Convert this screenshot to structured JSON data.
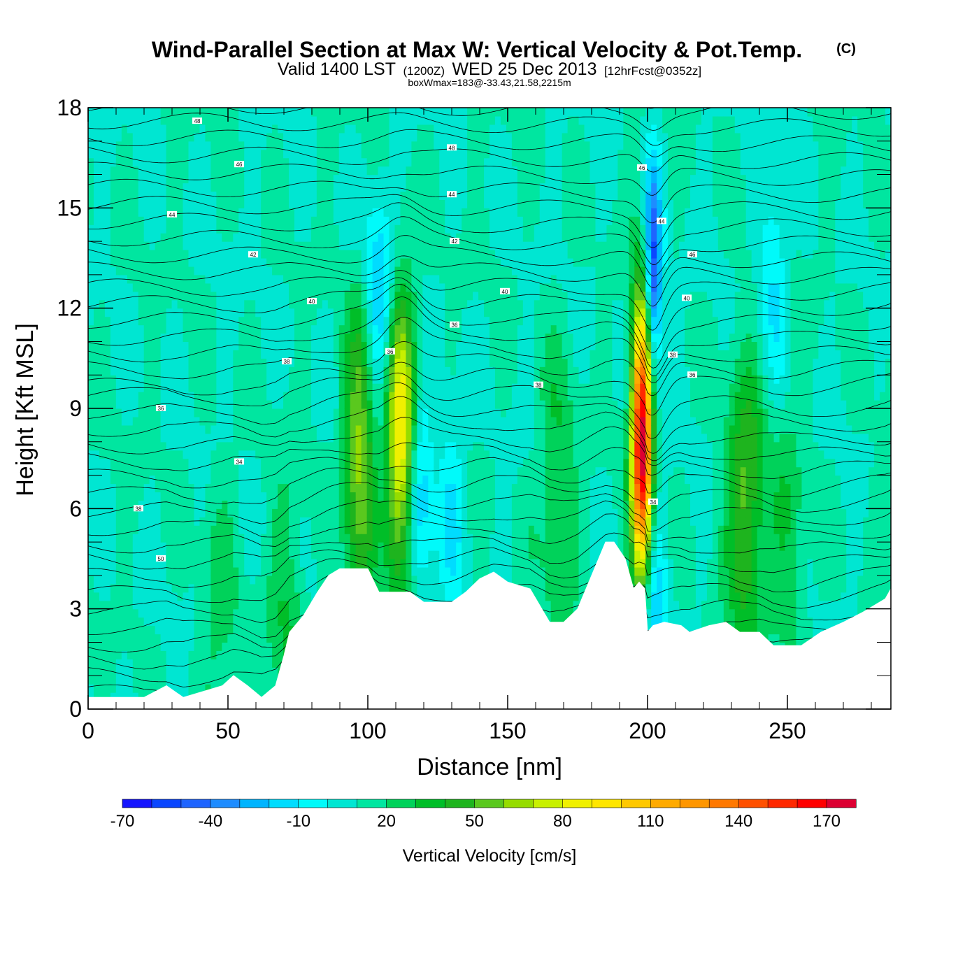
{
  "chart_data": {
    "type": "heatmap",
    "title": "Wind-Parallel Section at Max W: Vertical Velocity & Pot.Temp.",
    "title_mark": "(C)",
    "subtitle_parts": [
      "Valid 1400 LST",
      "(1200Z)",
      "WED 25 Dec 2013",
      "[12hrFcst@0352z]"
    ],
    "subtitle2": "boxWmax=183@-33.43,21.58,2215m",
    "xlabel": "Distance [nm]",
    "ylabel": "Height [Kft MSL]",
    "xlim": [
      0,
      287
    ],
    "ylim": [
      0,
      18
    ],
    "x_ticks": [
      0,
      50,
      100,
      150,
      200,
      250
    ],
    "x_tick_labels": [
      "0",
      "50",
      "100",
      "150",
      "200",
      "250"
    ],
    "y_ticks": [
      0,
      3,
      6,
      9,
      12,
      15,
      18
    ],
    "y_tick_labels": [
      "0",
      "3",
      "6",
      "9",
      "12",
      "15",
      "18"
    ],
    "background_value": 10,
    "updrafts": [
      {
        "x": 47,
        "z": 2.5,
        "w": 25
      },
      {
        "x": 71,
        "z": 2.5,
        "w": 30
      },
      {
        "x": 97,
        "z": 7.5,
        "w": 65
      },
      {
        "x": 112,
        "z": 8,
        "w": 95
      },
      {
        "x": 168,
        "z": 6.5,
        "w": 32
      },
      {
        "x": 198,
        "z": 8,
        "w": 183
      },
      {
        "x": 235,
        "z": 6,
        "w": 55
      },
      {
        "x": 250,
        "z": 5,
        "w": 28
      },
      {
        "x": 283,
        "z": 8,
        "w": 12
      }
    ],
    "downdrafts": [
      {
        "x": 118,
        "z": 6.5,
        "w": -28
      },
      {
        "x": 104,
        "z": 12.5,
        "w": -22
      },
      {
        "x": 202,
        "z": 13,
        "w": -60
      },
      {
        "x": 202,
        "z": 3,
        "w": -20
      },
      {
        "x": 130,
        "z": 6,
        "w": -10
      },
      {
        "x": 245,
        "z": 13,
        "w": -12
      }
    ],
    "terrain": [
      [
        0,
        0.35
      ],
      [
        20,
        0.35
      ],
      [
        28,
        0.7
      ],
      [
        34,
        0.35
      ],
      [
        48,
        0.7
      ],
      [
        52,
        1.0
      ],
      [
        57,
        0.7
      ],
      [
        62,
        0.35
      ],
      [
        67,
        0.7
      ],
      [
        70,
        1.6
      ],
      [
        72,
        2.3
      ],
      [
        77,
        2.8
      ],
      [
        82,
        3.5
      ],
      [
        86,
        4.0
      ],
      [
        90,
        4.2
      ],
      [
        100,
        4.2
      ],
      [
        104,
        3.5
      ],
      [
        110,
        3.5
      ],
      [
        115,
        3.5
      ],
      [
        120,
        3.2
      ],
      [
        130,
        3.2
      ],
      [
        135,
        3.5
      ],
      [
        140,
        3.9
      ],
      [
        145,
        4.1
      ],
      [
        150,
        3.8
      ],
      [
        158,
        3.6
      ],
      [
        165,
        2.6
      ],
      [
        170,
        2.6
      ],
      [
        175,
        3.0
      ],
      [
        180,
        4.0
      ],
      [
        185,
        5.0
      ],
      [
        188,
        5.0
      ],
      [
        192,
        4.5
      ],
      [
        195,
        3.6
      ],
      [
        197,
        3.8
      ],
      [
        199,
        3.6
      ],
      [
        200,
        2.3
      ],
      [
        202,
        2.5
      ],
      [
        206,
        2.6
      ],
      [
        212,
        2.5
      ],
      [
        215,
        2.3
      ],
      [
        222,
        2.5
      ],
      [
        228,
        2.6
      ],
      [
        233,
        2.3
      ],
      [
        240,
        2.3
      ],
      [
        245,
        1.9
      ],
      [
        255,
        1.9
      ],
      [
        262,
        2.3
      ],
      [
        270,
        2.6
      ],
      [
        277,
        2.9
      ],
      [
        285,
        3.3
      ],
      [
        287,
        3.6
      ]
    ],
    "theta_levels": [
      10,
      11,
      12,
      13,
      14,
      15,
      16,
      17,
      18,
      19,
      20,
      21,
      22,
      23,
      24,
      25,
      26,
      27,
      28,
      29,
      30,
      31,
      32,
      33,
      34,
      35,
      36,
      37,
      38,
      39,
      40,
      41,
      42,
      43,
      44,
      45,
      46,
      47,
      48,
      49,
      50,
      51,
      52,
      53,
      54,
      55,
      56,
      57,
      58,
      59,
      60
    ],
    "theta_labels": [
      {
        "x": 26,
        "z": 4.5,
        "text": "50"
      },
      {
        "x": 18,
        "z": 6.0,
        "text": "38"
      },
      {
        "x": 54,
        "z": 7.4,
        "text": "34"
      },
      {
        "x": 26,
        "z": 9.0,
        "text": "36"
      },
      {
        "x": 71,
        "z": 10.4,
        "text": "38"
      },
      {
        "x": 80,
        "z": 12.2,
        "text": "40"
      },
      {
        "x": 59,
        "z": 13.6,
        "text": "42"
      },
      {
        "x": 30,
        "z": 14.8,
        "text": "44"
      },
      {
        "x": 54,
        "z": 16.3,
        "text": "46"
      },
      {
        "x": 39,
        "z": 17.6,
        "text": "48"
      },
      {
        "x": 130,
        "z": 16.8,
        "text": "48"
      },
      {
        "x": 130,
        "z": 15.4,
        "text": "44"
      },
      {
        "x": 131,
        "z": 14.0,
        "text": "42"
      },
      {
        "x": 149,
        "z": 12.5,
        "text": "40"
      },
      {
        "x": 131,
        "z": 11.5,
        "text": "36"
      },
      {
        "x": 108,
        "z": 10.7,
        "text": "36"
      },
      {
        "x": 161,
        "z": 9.7,
        "text": "38"
      },
      {
        "x": 198,
        "z": 16.2,
        "text": "46"
      },
      {
        "x": 205,
        "z": 14.6,
        "text": "44"
      },
      {
        "x": 216,
        "z": 13.6,
        "text": "46"
      },
      {
        "x": 214,
        "z": 12.3,
        "text": "40"
      },
      {
        "x": 209,
        "z": 10.6,
        "text": "38"
      },
      {
        "x": 216,
        "z": 10.0,
        "text": "36"
      },
      {
        "x": 202,
        "z": 6.2,
        "text": "34"
      }
    ],
    "colorbar": {
      "label": "Vertical Velocity [cm/s]",
      "boundaries": [
        -70,
        -60,
        -50,
        -40,
        -30,
        -20,
        -10,
        0,
        10,
        20,
        30,
        40,
        50,
        60,
        70,
        80,
        90,
        100,
        110,
        120,
        130,
        140,
        150,
        160,
        170,
        180
      ],
      "colors": [
        "#1414ff",
        "#0a46ff",
        "#1e64ff",
        "#1e8cff",
        "#00b4ff",
        "#00dcff",
        "#00fafa",
        "#00e6d2",
        "#00e6a0",
        "#00d25a",
        "#00be28",
        "#1eb41e",
        "#5ac81e",
        "#96dc00",
        "#c8f000",
        "#f0f000",
        "#ffe600",
        "#ffc800",
        "#ffaa00",
        "#ff9600",
        "#ff7800",
        "#ff5000",
        "#ff2800",
        "#ff0000",
        "#dc0032"
      ],
      "tick_values": [
        -70,
        -40,
        -10,
        20,
        50,
        80,
        110,
        140,
        170
      ],
      "tick_labels": [
        "-70",
        "-40",
        "-10",
        "20",
        "50",
        "80",
        "110",
        "140",
        "170"
      ]
    }
  }
}
